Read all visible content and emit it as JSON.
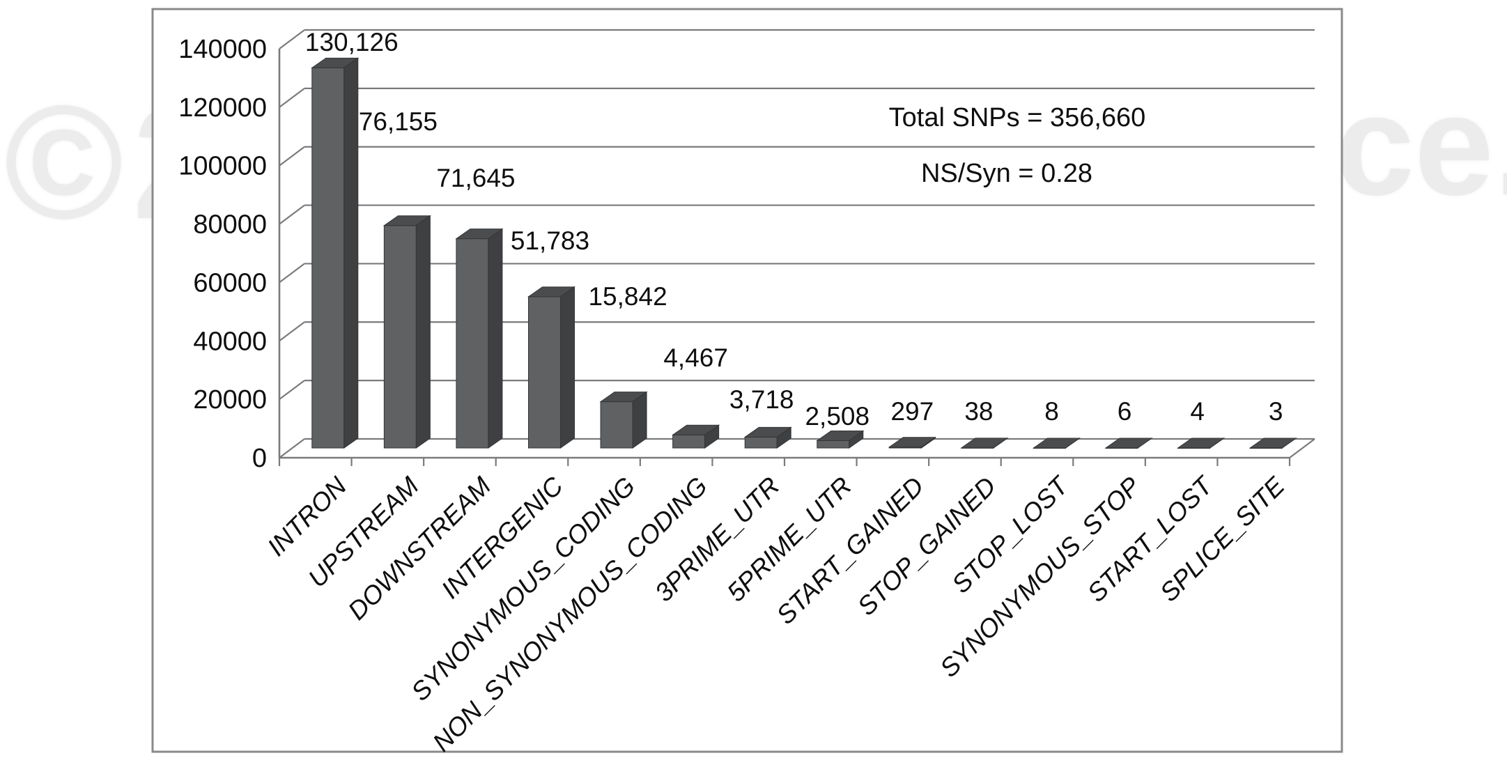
{
  "watermark": {
    "left": "© 2",
    "right": "ce.",
    "color": "#ececec"
  },
  "annotations": {
    "total_snps": "Total SNPs = 356,660",
    "ns_syn": "NS/Syn = 0.28"
  },
  "chart_data": {
    "type": "bar",
    "style": "3d-column-gray",
    "title": "",
    "xlabel": "",
    "ylabel": "",
    "categories": [
      "INTRON",
      "UPSTREAM",
      "DOWNSTREAM",
      "INTERGENIC",
      "SYNONYMOUS_CODING",
      "NON_SYNONYMOUS_CODING",
      "3PRIME_UTR",
      "5PRIME_UTR",
      "START_GAINED",
      "STOP_GAINED",
      "STOP_LOST",
      "SYNONYMOUS_STOP",
      "START_LOST",
      "SPLICE_SITE"
    ],
    "values": [
      130126,
      76155,
      71645,
      51783,
      15842,
      4467,
      3718,
      2508,
      297,
      38,
      8,
      6,
      4,
      3
    ],
    "value_labels": [
      "130,126",
      "76,155",
      "71,645",
      "51,783",
      "15,842",
      "4,467",
      "3,718",
      "2,508",
      "297",
      "38",
      "8",
      "6",
      "4",
      "3"
    ],
    "ylim": [
      0,
      140000
    ],
    "ytick_step": 20000,
    "ytick_labels": [
      "0",
      "20000",
      "40000",
      "60000",
      "80000",
      "100000",
      "120000",
      "140000"
    ],
    "grid": true,
    "legend": "none",
    "annotations": [
      "Total SNPs = 356,660",
      "NS/Syn = 0.28"
    ],
    "colors": {
      "bar_front": "#5f6163",
      "bar_top": "#4a4c4e",
      "bar_side": "#3e4042",
      "bar_edge": "#333537",
      "axis": "#7a7a7a",
      "frame": "#8a8a8a",
      "text": "#0e0e0e"
    },
    "layout": {
      "legend_position": "none",
      "x_label_rotation_deg": -45,
      "label_y": [
        60,
        174,
        255,
        345,
        425,
        513,
        573,
        597,
        590,
        590,
        590,
        590,
        590,
        590
      ],
      "label_dx": [
        34,
        -3,
        5,
        8,
        16,
        10,
        1,
        6,
        10,
        2,
        3,
        4,
        5,
        14
      ]
    }
  }
}
